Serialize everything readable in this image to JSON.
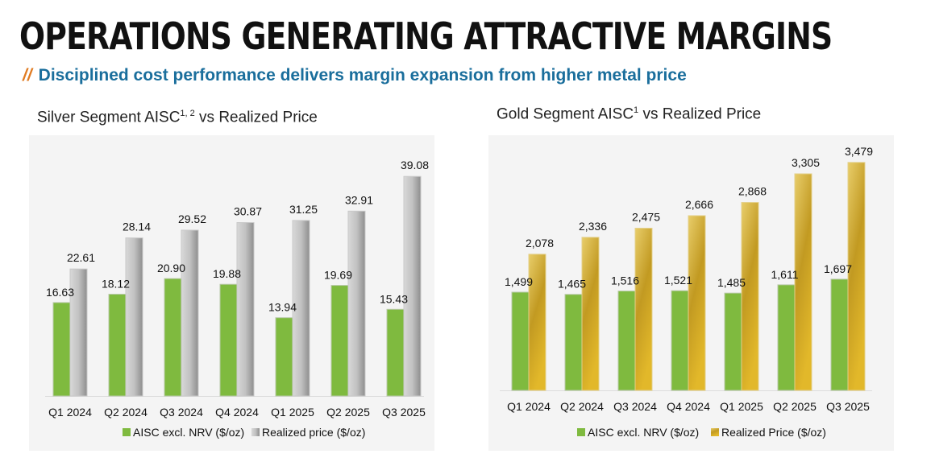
{
  "header": {
    "title": "OPERATIONS GENERATING ATTRACTIVE MARGINS",
    "subtitle_prefix": "//",
    "subtitle": "Disciplined cost performance delivers margin expansion from higher metal price"
  },
  "colors": {
    "title": "#111111",
    "subtitle": "#1a6e9c",
    "accent": "#e07b22",
    "aisc_green": "#7fba3f",
    "silver_gray": "#b5b5b5",
    "gold": "#d6ae2e",
    "panel_bg": "#f4f4f4"
  },
  "silver_title": {
    "text": "Silver Segment AISC",
    "sup": "1, 2",
    "rest": " vs Realized Price"
  },
  "gold_title": {
    "text": "Gold Segment AISC",
    "sup": "1",
    "rest": " vs Realized Price"
  },
  "chart_data": [
    {
      "type": "bar",
      "title": "Silver Segment AISC1,2 vs Realized Price",
      "categories": [
        "Q1 2024",
        "Q2 2024",
        "Q3 2024",
        "Q4 2024",
        "Q1 2025",
        "Q2 2025",
        "Q3 2025"
      ],
      "series": [
        {
          "name": "AISC excl. NRV ($/oz)",
          "values": [
            16.63,
            18.12,
            20.9,
            19.88,
            13.94,
            19.69,
            15.43
          ],
          "labels": [
            "16.63",
            "18.12",
            "20.90",
            "19.88",
            "13.94",
            "19.69",
            "15.43"
          ]
        },
        {
          "name": "Realized price ($/oz)",
          "values": [
            22.61,
            28.14,
            29.52,
            30.87,
            31.25,
            32.91,
            39.08
          ],
          "labels": [
            "22.61",
            "28.14",
            "29.52",
            "30.87",
            "31.25",
            "32.91",
            "39.08"
          ]
        }
      ],
      "xlabel": "",
      "ylabel": "",
      "ylim": [
        0,
        42
      ],
      "grid": false,
      "legend": "bottom"
    },
    {
      "type": "bar",
      "title": "Gold Segment AISC1 vs Realized Price",
      "categories": [
        "Q1 2024",
        "Q2 2024",
        "Q3 2024",
        "Q4 2024",
        "Q1 2025",
        "Q2 2025",
        "Q3 2025"
      ],
      "series": [
        {
          "name": "AISC excl. NRV ($/oz)",
          "values": [
            1499,
            1465,
            1516,
            1521,
            1485,
            1611,
            1697
          ],
          "labels": [
            "1,499",
            "1,465",
            "1,516",
            "1,521",
            "1,485",
            "1,611",
            "1,697"
          ]
        },
        {
          "name": "Realized Price ($/oz)",
          "values": [
            2078,
            2336,
            2475,
            2666,
            2868,
            3305,
            3479
          ],
          "labels": [
            "2,078",
            "2,336",
            "2,475",
            "2,666",
            "2,868",
            "3,305",
            "3,479"
          ]
        }
      ],
      "xlabel": "",
      "ylabel": "",
      "ylim": [
        0,
        3700
      ],
      "grid": false,
      "legend": "bottom"
    }
  ]
}
